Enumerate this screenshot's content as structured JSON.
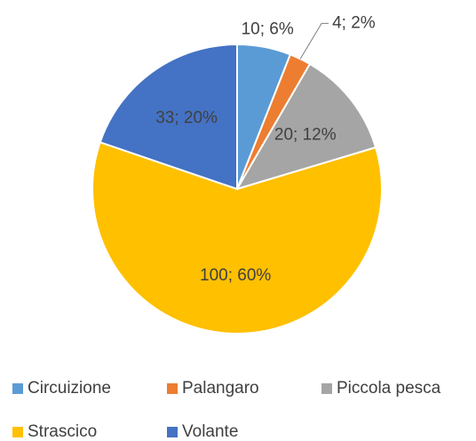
{
  "chart_data": {
    "type": "pie",
    "categories": [
      "Circuizione",
      "Palangaro",
      "Piccola pesca",
      "Strascico",
      "Volante"
    ],
    "values": [
      10,
      4,
      20,
      100,
      33
    ],
    "value_labels": [
      "10; 6%",
      "4; 2%",
      "20; 12%",
      "100; 60%",
      "33; 20%"
    ],
    "colors": [
      "#5b9bd5",
      "#ed7d31",
      "#a5a5a5",
      "#ffc000",
      "#4472c4"
    ],
    "legend": "bottom"
  }
}
